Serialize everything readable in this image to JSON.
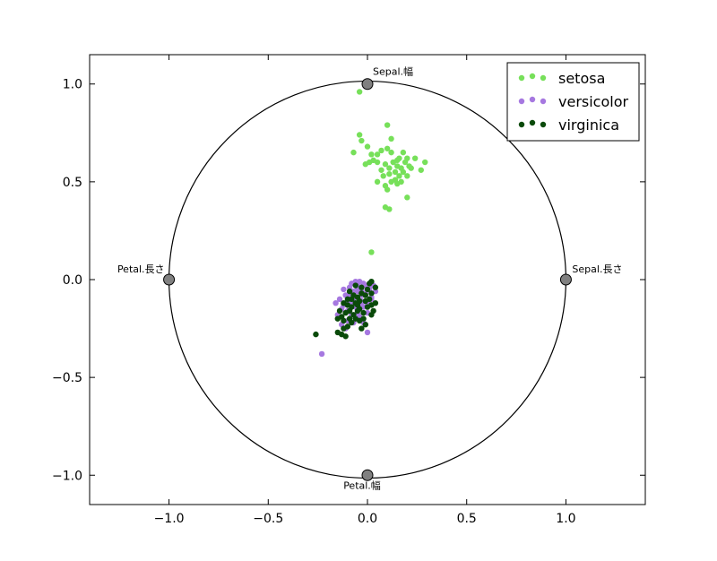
{
  "chart_data": {
    "type": "scatter",
    "xlim": [
      -1.4,
      1.4
    ],
    "ylim": [
      -1.15,
      1.15
    ],
    "x_ticks": [
      -1.0,
      -0.5,
      0.0,
      0.5,
      1.0
    ],
    "y_ticks": [
      1.0,
      0.5,
      0.0,
      -0.5,
      -1.0
    ],
    "x_tick_labels": [
      "−1.0",
      "−0.5",
      "0.0",
      "0.5",
      "1.0"
    ],
    "y_tick_labels": [
      "1.0",
      "0.5",
      "0.0",
      "−0.5",
      "−1.0"
    ],
    "unit_circle": {
      "radius": 1.0
    },
    "anchors": [
      {
        "label": "Sepal.幅",
        "x": 0.0,
        "y": 1.0
      },
      {
        "label": "Sepal.長さ",
        "x": 1.0,
        "y": 0.0
      },
      {
        "label": "Petal.長さ",
        "x": -1.0,
        "y": 0.0
      },
      {
        "label": "Petal.幅",
        "x": 0.0,
        "y": -1.0
      }
    ],
    "legend_position": "top-right",
    "series": [
      {
        "name": "setosa",
        "color": "#77e05a",
        "points": [
          [
            -0.04,
            0.96
          ],
          [
            0.1,
            0.79
          ],
          [
            -0.04,
            0.74
          ],
          [
            -0.03,
            0.71
          ],
          [
            0.12,
            0.72
          ],
          [
            0.07,
            0.66
          ],
          [
            0.0,
            0.68
          ],
          [
            0.02,
            0.64
          ],
          [
            0.05,
            0.64
          ],
          [
            0.1,
            0.67
          ],
          [
            0.12,
            0.65
          ],
          [
            0.15,
            0.61
          ],
          [
            0.18,
            0.65
          ],
          [
            0.2,
            0.62
          ],
          [
            0.24,
            0.62
          ],
          [
            0.29,
            0.6
          ],
          [
            0.27,
            0.56
          ],
          [
            0.13,
            0.6
          ],
          [
            0.15,
            0.58
          ],
          [
            0.17,
            0.57
          ],
          [
            0.19,
            0.6
          ],
          [
            0.21,
            0.58
          ],
          [
            0.14,
            0.55
          ],
          [
            0.16,
            0.53
          ],
          [
            0.18,
            0.55
          ],
          [
            0.2,
            0.53
          ],
          [
            0.11,
            0.57
          ],
          [
            0.09,
            0.59
          ],
          [
            0.07,
            0.56
          ],
          [
            0.05,
            0.6
          ],
          [
            0.01,
            0.6
          ],
          [
            -0.01,
            0.59
          ],
          [
            0.03,
            0.61
          ],
          [
            -0.07,
            0.65
          ],
          [
            0.12,
            0.5
          ],
          [
            0.14,
            0.51
          ],
          [
            0.17,
            0.5
          ],
          [
            0.09,
            0.48
          ],
          [
            0.1,
            0.46
          ],
          [
            0.05,
            0.5
          ],
          [
            0.2,
            0.42
          ],
          [
            0.09,
            0.37
          ],
          [
            0.11,
            0.36
          ],
          [
            0.13,
            0.6
          ],
          [
            0.16,
            0.62
          ],
          [
            0.22,
            0.57
          ],
          [
            0.11,
            0.54
          ],
          [
            0.15,
            0.49
          ],
          [
            0.08,
            0.53
          ],
          [
            0.02,
            0.14
          ]
        ]
      },
      {
        "name": "versicolor",
        "color": "#a678e0",
        "points": [
          [
            -0.23,
            -0.38
          ],
          [
            -0.13,
            -0.23
          ],
          [
            -0.1,
            -0.21
          ],
          [
            -0.05,
            -0.17
          ],
          [
            -0.03,
            -0.11
          ],
          [
            -0.06,
            -0.09
          ],
          [
            -0.07,
            -0.06
          ],
          [
            -0.09,
            -0.04
          ],
          [
            -0.08,
            -0.02
          ],
          [
            -0.05,
            -0.03
          ],
          [
            -0.03,
            -0.05
          ],
          [
            -0.01,
            -0.07
          ],
          [
            0.01,
            -0.04
          ],
          [
            0.03,
            -0.03
          ],
          [
            0.04,
            -0.06
          ],
          [
            0.02,
            -0.09
          ],
          [
            0.0,
            -0.12
          ],
          [
            -0.02,
            -0.14
          ],
          [
            -0.11,
            -0.08
          ],
          [
            -0.14,
            -0.1
          ],
          [
            -0.12,
            -0.13
          ],
          [
            -0.15,
            -0.18
          ],
          [
            -0.1,
            -0.16
          ],
          [
            -0.08,
            -0.12
          ],
          [
            -0.04,
            -0.19
          ],
          [
            -0.02,
            -0.22
          ],
          [
            0.0,
            -0.17
          ],
          [
            -0.06,
            -0.14
          ],
          [
            -0.09,
            -0.07
          ],
          [
            -0.04,
            -0.01
          ],
          [
            -0.01,
            -0.03
          ],
          [
            -0.03,
            -0.08
          ],
          [
            -0.07,
            -0.1
          ],
          [
            -0.12,
            -0.05
          ],
          [
            -0.16,
            -0.12
          ],
          [
            -0.05,
            -0.06
          ],
          [
            -0.1,
            -0.11
          ],
          [
            0.02,
            -0.1
          ],
          [
            -0.04,
            -0.14
          ],
          [
            -0.08,
            -0.18
          ],
          [
            -0.13,
            -0.15
          ],
          [
            -0.07,
            -0.22
          ],
          [
            0.0,
            -0.27
          ],
          [
            -0.11,
            -0.25
          ],
          [
            -0.05,
            -0.04
          ],
          [
            -0.02,
            -0.02
          ],
          [
            0.01,
            -0.05
          ],
          [
            -0.09,
            -0.09
          ],
          [
            -0.06,
            -0.01
          ],
          [
            -0.03,
            -0.12
          ]
        ]
      },
      {
        "name": "virginica",
        "color": "#0a4a0a",
        "points": [
          [
            0.02,
            -0.01
          ],
          [
            0.04,
            -0.04
          ],
          [
            0.02,
            -0.07
          ],
          [
            0.01,
            -0.1
          ],
          [
            -0.01,
            -0.08
          ],
          [
            -0.03,
            -0.04
          ],
          [
            -0.05,
            -0.09
          ],
          [
            -0.06,
            -0.12
          ],
          [
            -0.08,
            -0.14
          ],
          [
            -0.1,
            -0.1
          ],
          [
            -0.12,
            -0.12
          ],
          [
            -0.04,
            -0.15
          ],
          [
            -0.02,
            -0.17
          ],
          [
            0.0,
            -0.14
          ],
          [
            -0.07,
            -0.18
          ],
          [
            -0.09,
            -0.16
          ],
          [
            -0.11,
            -0.17
          ],
          [
            -0.13,
            -0.19
          ],
          [
            -0.14,
            -0.16
          ],
          [
            -0.06,
            -0.2
          ],
          [
            -0.04,
            -0.21
          ],
          [
            -0.02,
            -0.2
          ],
          [
            -0.08,
            -0.22
          ],
          [
            -0.1,
            -0.24
          ],
          [
            -0.12,
            -0.25
          ],
          [
            -0.15,
            -0.27
          ],
          [
            -0.26,
            -0.28
          ],
          [
            -0.13,
            -0.28
          ],
          [
            -0.11,
            -0.29
          ],
          [
            -0.03,
            -0.25
          ],
          [
            -0.01,
            -0.23
          ],
          [
            0.02,
            -0.18
          ],
          [
            0.03,
            -0.16
          ],
          [
            0.04,
            -0.12
          ],
          [
            0.02,
            -0.13
          ],
          [
            -0.01,
            -0.11
          ],
          [
            -0.05,
            -0.13
          ],
          [
            -0.07,
            -0.08
          ],
          [
            -0.09,
            -0.06
          ],
          [
            -0.03,
            -0.07
          ],
          [
            0.0,
            -0.05
          ],
          [
            0.01,
            -0.02
          ],
          [
            -0.06,
            -0.03
          ],
          [
            -0.08,
            -0.1
          ],
          [
            -0.04,
            -0.11
          ],
          [
            -0.1,
            -0.13
          ],
          [
            -0.15,
            -0.2
          ],
          [
            -0.09,
            -0.2
          ],
          [
            -0.05,
            -0.16
          ],
          [
            -0.12,
            -0.21
          ]
        ]
      }
    ]
  }
}
